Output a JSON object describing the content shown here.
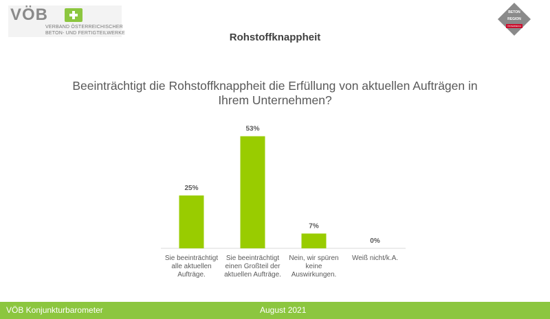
{
  "header": {
    "logo_word": "VÖB",
    "logo_line1": "VERBAND ÖSTERREICHISCHER",
    "logo_line2": "BETON- UND FERTIGTEILWERKE",
    "badge_line1": "BETON",
    "badge_line2": "REGION",
    "badge_red": "ÖSTERREICH",
    "section_title": "Rohstoffknappheit"
  },
  "colors": {
    "accent": "#8cc63f",
    "bar": "#99cc00",
    "text": "#595959"
  },
  "chart_data": {
    "type": "bar",
    "title": "Beeinträchtigt die Rohstoffknappheit die Erfüllung von aktuellen Aufträgen in Ihrem Unternehmen?",
    "categories": [
      [
        "Sie beeinträchtigt",
        "alle aktuellen",
        "Aufträge."
      ],
      [
        "Sie beeinträchtigt",
        "einen Großteil der",
        "aktuellen Aufträge."
      ],
      [
        "Nein, wir spüren",
        "keine",
        "Auswirkungen."
      ],
      [
        "Weiß nicht/k.A."
      ]
    ],
    "values": [
      25,
      53,
      7,
      0
    ],
    "data_labels": [
      "25%",
      "53%",
      "7%",
      "0%"
    ],
    "unit": "%",
    "ylim": [
      0,
      60
    ],
    "grid": false,
    "legend": "none"
  },
  "footer": {
    "left": "VÖB Konjunkturbarometer",
    "date": "August 2021"
  }
}
